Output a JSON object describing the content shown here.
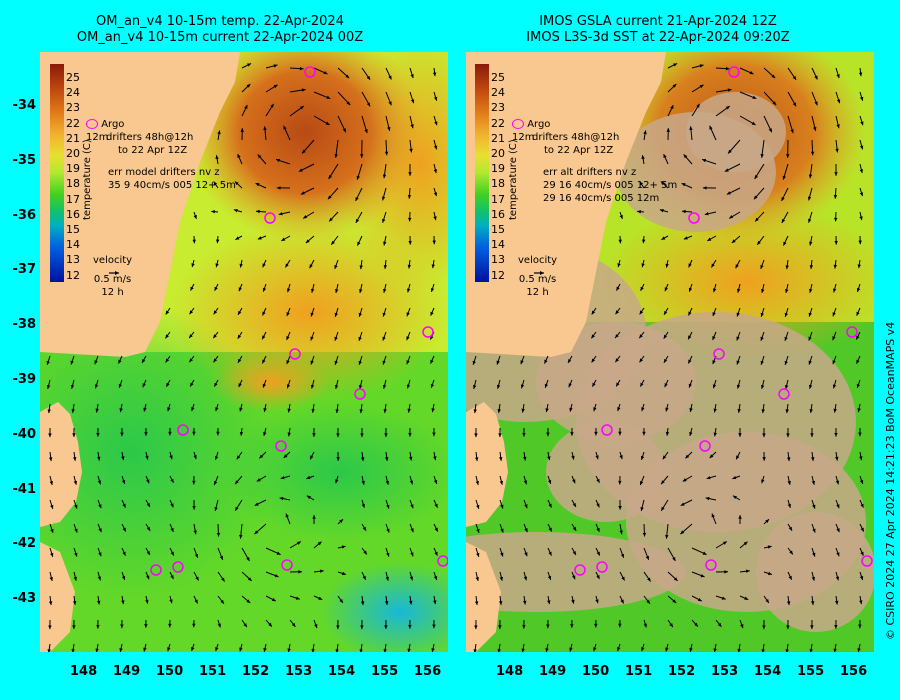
{
  "left_panel": {
    "title_line1": "OM_an_v4  10-15m temp. 22-Apr-2024",
    "title_line2": "OM_an_v4  10-15m current 22-Apr-2024 00Z",
    "argo_label": "Argo",
    "drifter_line1": "12m",
    "drifter_line2": "drifters 48h@12h",
    "drifter_line3": "to 22 Apr 12Z",
    "err_line1": "err model drifters nv z",
    "err_line2": "35 9 40cm/s 005 12+ 5m"
  },
  "right_panel": {
    "title_line1": "IMOS GSLA current 21-Apr-2024 12Z",
    "title_line2": "IMOS L3S-3d SST at 22-Apr-2024 09:20Z",
    "argo_label": "Argo",
    "drifter_line1": "12m",
    "drifter_line2": "drifters 48h@12h",
    "drifter_line3": "to 22 Apr 12Z",
    "err_line1": "err alt drifters nv z",
    "err_line2": "29 16 40cm/s 005 12+ 5m",
    "err_line3": "29 16 40cm/s 005 12m"
  },
  "colorbar": {
    "labels": [
      "25",
      "24",
      "23",
      "22",
      "21",
      "20",
      "19",
      "18",
      "17",
      "16",
      "15",
      "14",
      "13",
      "12"
    ],
    "title": "temperature (C)"
  },
  "velocity_key": {
    "title": "velocity",
    "speed": "0.5 m/s",
    "period": "12 h"
  },
  "axes": {
    "lon_ticks": [
      "148",
      "149",
      "150",
      "151",
      "152",
      "153",
      "154",
      "155",
      "156"
    ],
    "lat_ticks": [
      "-34",
      "-35",
      "-36",
      "-37",
      "-38",
      "-39",
      "-40",
      "-41",
      "-42",
      "-43"
    ]
  },
  "credit": "© CSIRO 2024   27 Apr 2024 14:21:23 BoM OceanMAPS v4",
  "colors": {
    "background": "#00ffff",
    "land": "#f8c890",
    "cloud": "#c8a888",
    "argo": "#ff00ff"
  }
}
